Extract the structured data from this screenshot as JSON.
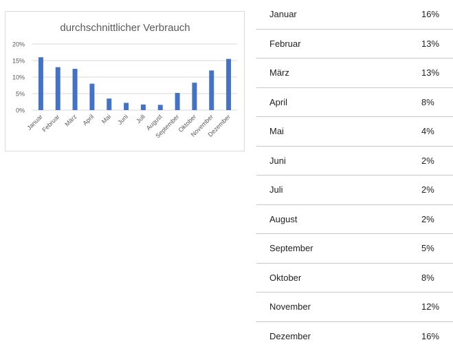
{
  "chart_data": {
    "type": "bar",
    "title": "durchschnittlicher Verbrauch",
    "categories": [
      "Januar",
      "Februar",
      "März",
      "April",
      "Mai",
      "Juni",
      "Juli",
      "August",
      "September",
      "Oktober",
      "November",
      "Dezember"
    ],
    "values": [
      16,
      13,
      12.5,
      8,
      3.5,
      2.2,
      1.7,
      1.6,
      5.2,
      8.3,
      12,
      15.5
    ],
    "ylim": [
      0,
      20
    ],
    "yticks": [
      "0%",
      "5%",
      "10%",
      "15%",
      "20%"
    ],
    "color": "#4472c4",
    "grid": true,
    "xlabel": "",
    "ylabel": ""
  },
  "table": {
    "rows": [
      {
        "month": "Januar",
        "value": "16%"
      },
      {
        "month": "Februar",
        "value": "13%"
      },
      {
        "month": "März",
        "value": "13%"
      },
      {
        "month": "April",
        "value": "8%"
      },
      {
        "month": "Mai",
        "value": "4%"
      },
      {
        "month": "Juni",
        "value": "2%"
      },
      {
        "month": "Juli",
        "value": "2%"
      },
      {
        "month": "August",
        "value": "2%"
      },
      {
        "month": "September",
        "value": "5%"
      },
      {
        "month": "Oktober",
        "value": "8%"
      },
      {
        "month": "November",
        "value": "12%"
      },
      {
        "month": "Dezember",
        "value": "16%"
      }
    ]
  }
}
